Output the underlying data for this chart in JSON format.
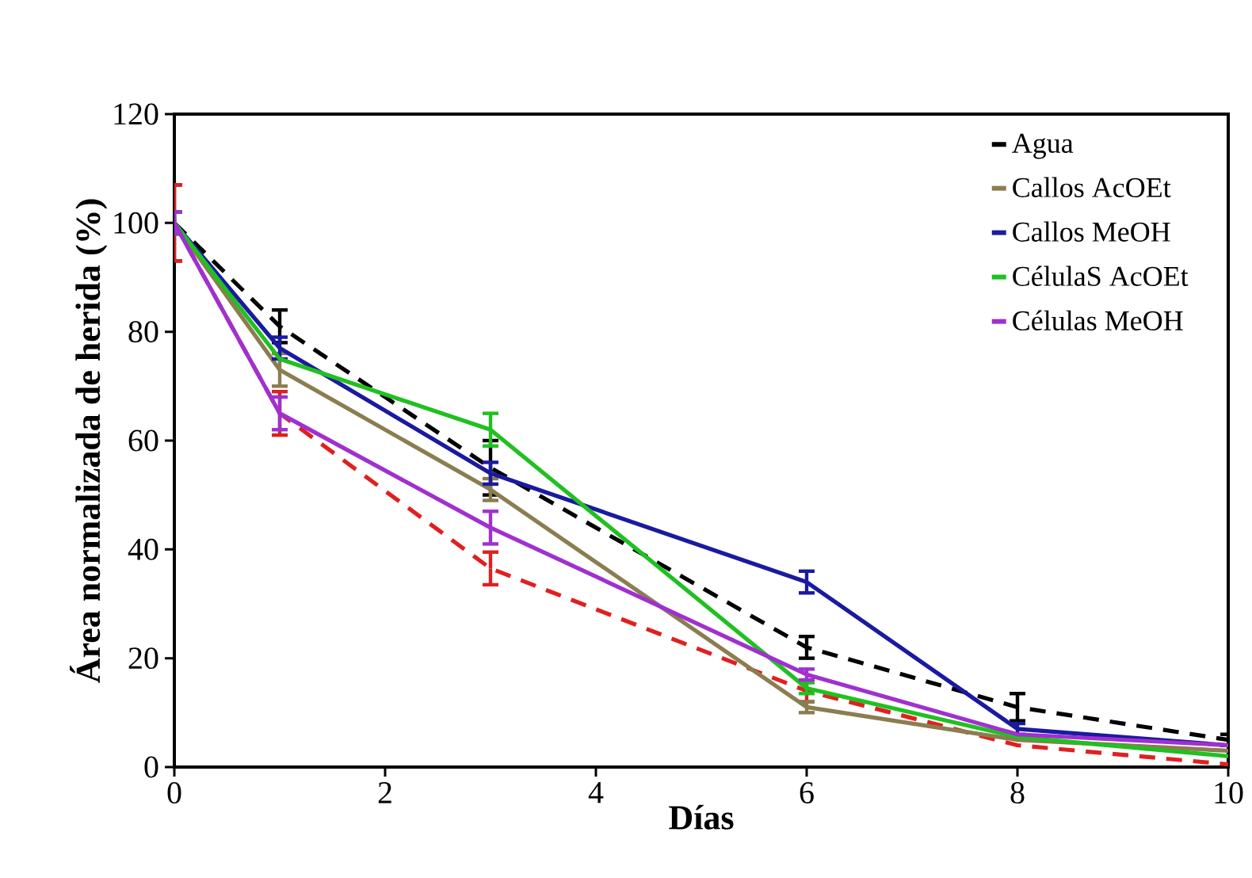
{
  "chart_data": {
    "type": "line",
    "xlabel": "Días",
    "ylabel": "Área normalizada de herida (%)",
    "x": [
      0,
      1,
      3,
      6,
      8,
      10
    ],
    "xlim": [
      0,
      10
    ],
    "xticks": [
      0,
      2,
      4,
      6,
      8,
      10
    ],
    "ylim": [
      0,
      120
    ],
    "yticks": [
      0,
      20,
      40,
      60,
      80,
      100,
      120
    ],
    "legend": "top right",
    "grid": false,
    "series": [
      {
        "name": "Agua",
        "color": "#000000",
        "line_style": "dashed",
        "values": [
          100,
          81,
          55,
          22,
          11,
          5
        ],
        "errors": [
          7,
          3,
          5,
          2,
          2.5,
          1
        ]
      },
      {
        "color": "#e02020",
        "line_style": "dashed",
        "values": [
          100,
          65,
          36.5,
          14,
          4,
          0.5
        ],
        "errors": [
          7,
          4,
          3,
          2,
          null,
          null
        ]
      },
      {
        "name": "Callos AcOEt",
        "color": "#8b7d50",
        "line_style": "solid",
        "values": [
          100,
          73,
          51,
          11,
          5,
          3
        ],
        "errors": [
          2,
          3,
          2,
          1,
          null,
          null
        ]
      },
      {
        "name": "Callos MeOH",
        "color": "#1a1aa0",
        "line_style": "solid",
        "values": [
          100,
          77,
          54,
          34,
          7,
          4
        ],
        "errors": [
          2,
          2,
          2,
          2,
          1,
          null
        ]
      },
      {
        "name": "CélulaS AcOEt",
        "color": "#20c020",
        "line_style": "solid",
        "values": [
          100,
          75,
          62,
          14.5,
          5.5,
          2
        ],
        "errors": [
          2,
          null,
          3,
          1,
          null,
          null
        ]
      },
      {
        "name": "Células MeOH",
        "color": "#a030d0",
        "line_style": "solid",
        "values": [
          100,
          65,
          44,
          17,
          6,
          4
        ],
        "errors": [
          2,
          3,
          3,
          1,
          null,
          null
        ]
      }
    ]
  }
}
